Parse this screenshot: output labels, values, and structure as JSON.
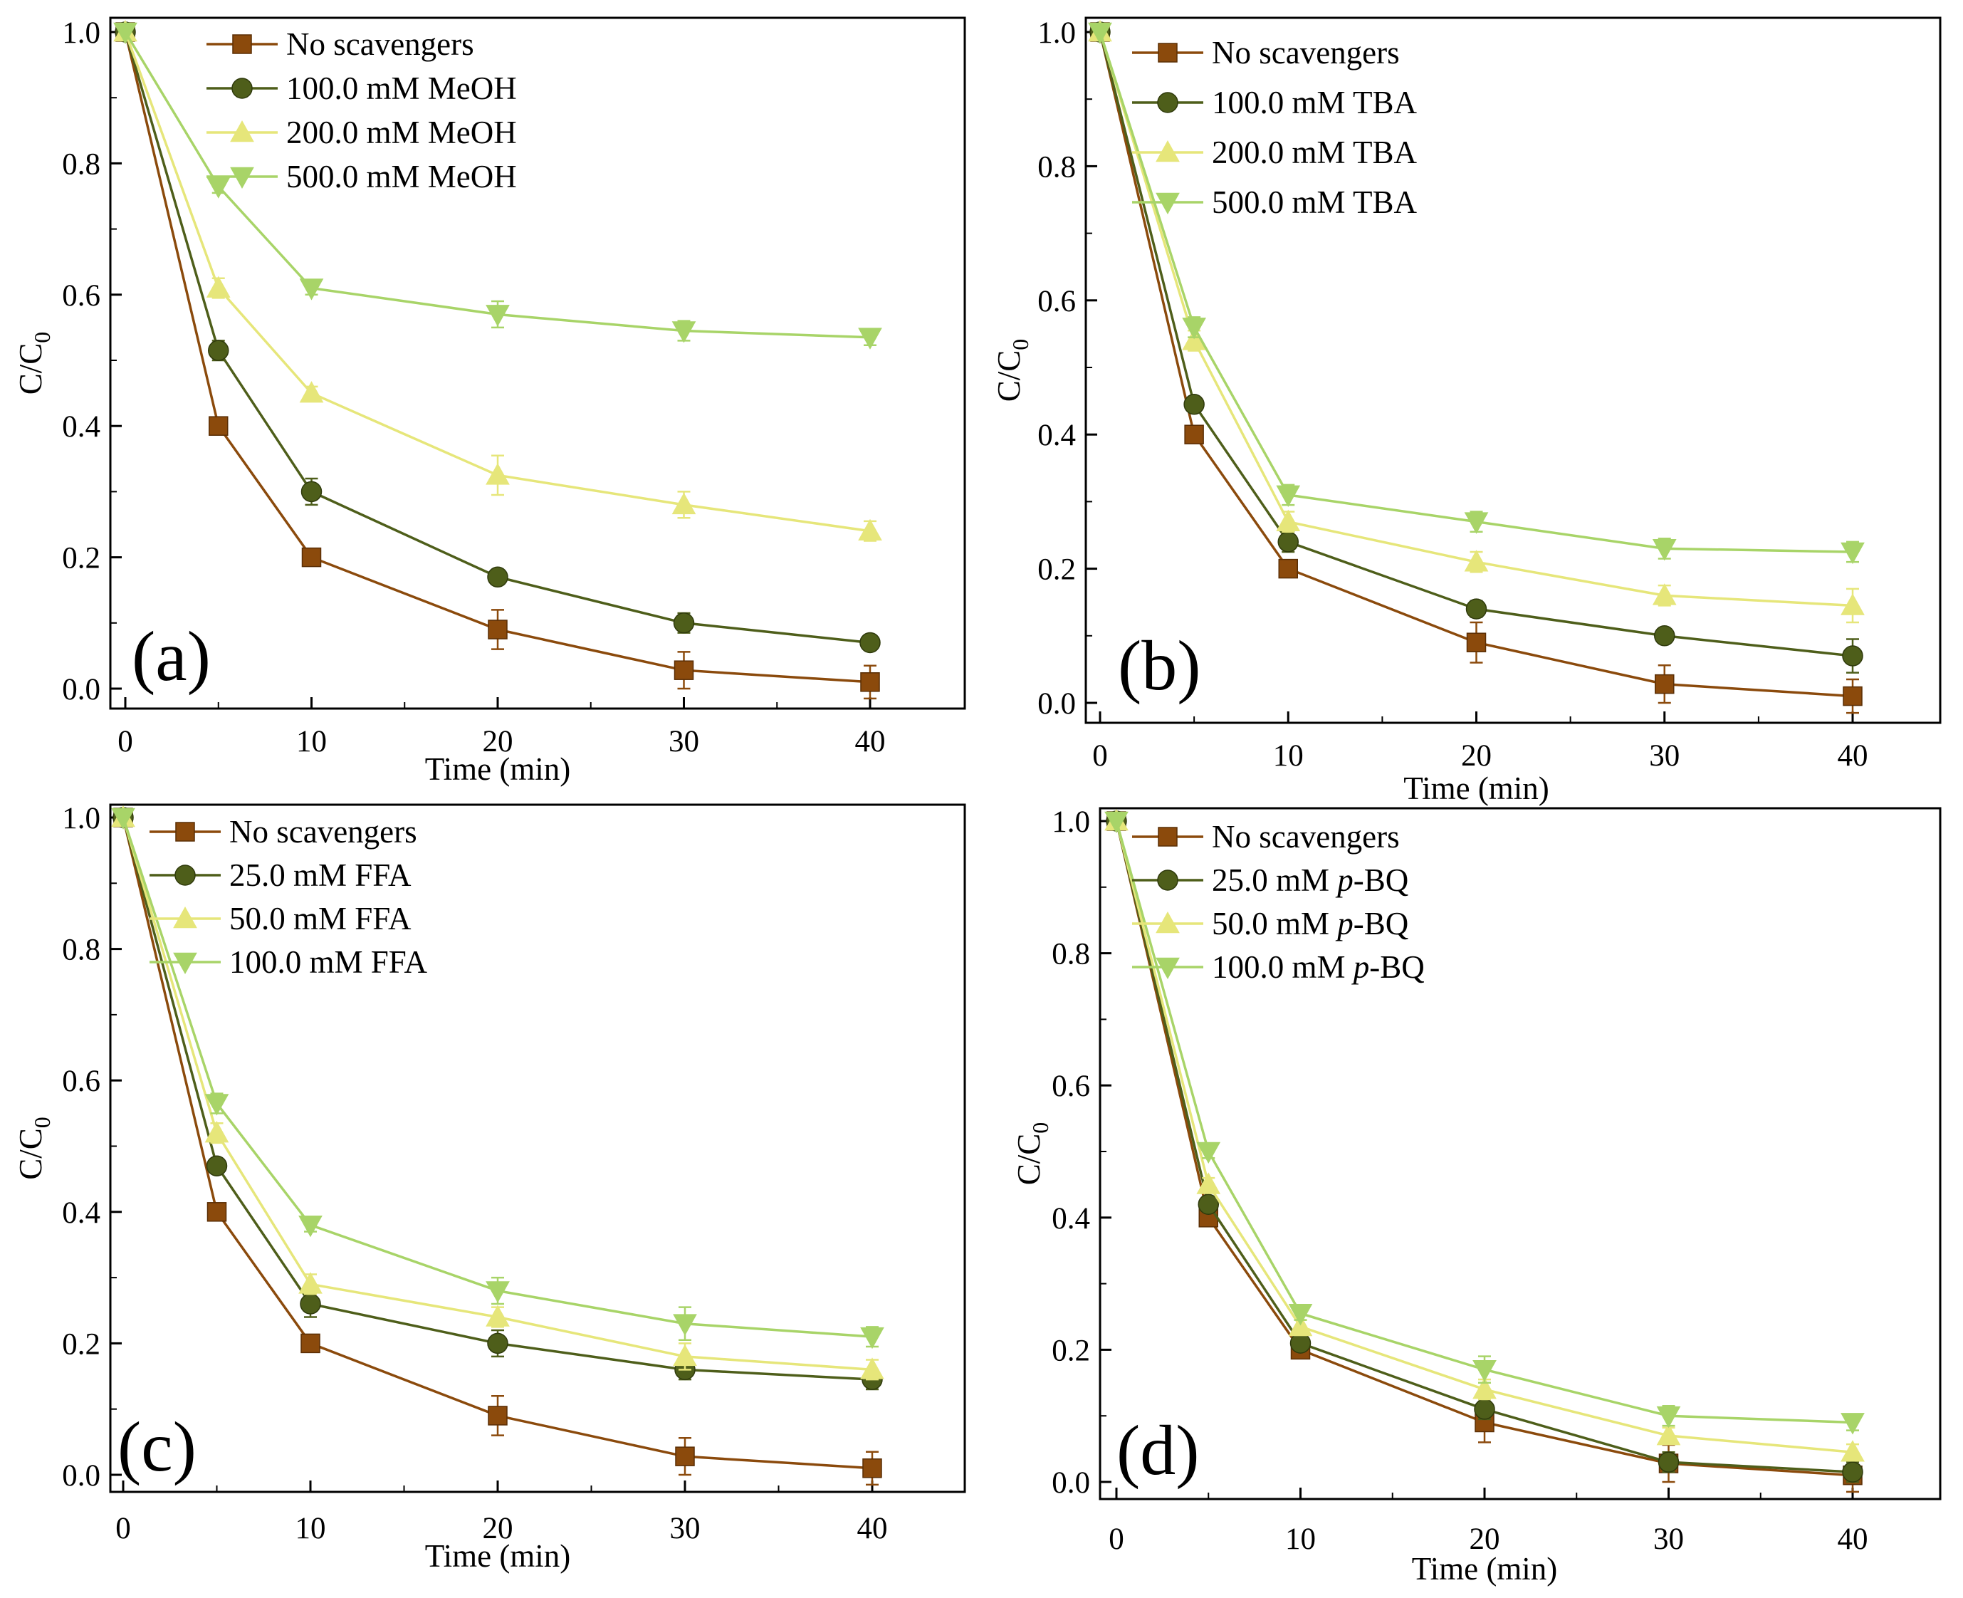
{
  "colors": {
    "none": "#8B4A0C",
    "c1": "#4E5E1A",
    "c2": "#E6E67A",
    "c3": "#A8D468",
    "axis": "#000000"
  },
  "chart_data": [
    {
      "type": "line",
      "panel_label": "(a)",
      "xlabel": "Time (min)",
      "ylabel": "C/C",
      "ylabel_sub": "0",
      "x": [
        0,
        5,
        10,
        20,
        30,
        40
      ],
      "xlim": [
        -1,
        45
      ],
      "ylim": [
        -0.02,
        1.02
      ],
      "xticks": [
        0,
        10,
        20,
        30,
        40
      ],
      "yticks": [
        "0.0",
        "0.2",
        "0.4",
        "0.6",
        "0.8",
        "1.0"
      ],
      "legend_position": "top-center",
      "series": [
        {
          "name": "No scavengers",
          "marker": "square",
          "color_key": "none",
          "values": [
            1.0,
            0.4,
            0.2,
            0.09,
            0.028,
            0.01
          ],
          "errors": [
            0,
            0.01,
            0.01,
            0.03,
            0.028,
            0.025
          ]
        },
        {
          "name": "100.0 mM MeOH",
          "marker": "circle",
          "color_key": "c1",
          "values": [
            1.0,
            0.515,
            0.3,
            0.17,
            0.1,
            0.07
          ],
          "errors": [
            0,
            0.015,
            0.02,
            0.01,
            0.015,
            0.01
          ]
        },
        {
          "name": "200.0 mM MeOH",
          "marker": "triangle-up",
          "color_key": "c2",
          "values": [
            1.0,
            0.61,
            0.45,
            0.325,
            0.28,
            0.24
          ],
          "errors": [
            0,
            0.015,
            0.01,
            0.03,
            0.02,
            0.015
          ]
        },
        {
          "name": "500.0 mM MeOH",
          "marker": "triangle-down",
          "color_key": "c3",
          "values": [
            1.0,
            0.765,
            0.61,
            0.57,
            0.545,
            0.535
          ],
          "errors": [
            0,
            0.01,
            0.01,
            0.02,
            0.015,
            0.012
          ]
        }
      ]
    },
    {
      "type": "line",
      "panel_label": "(b)",
      "xlabel": "Time (min)",
      "ylabel": "C/C",
      "ylabel_sub": "0",
      "x": [
        0,
        5,
        10,
        20,
        30,
        40
      ],
      "xlim": [
        -1,
        45
      ],
      "ylim": [
        -0.02,
        1.02
      ],
      "xticks": [
        0,
        10,
        20,
        30,
        40
      ],
      "yticks": [
        "0.0",
        "0.2",
        "0.4",
        "0.6",
        "0.8",
        "1.0"
      ],
      "legend_position": "top-center",
      "series": [
        {
          "name": "No scavengers",
          "marker": "square",
          "color_key": "none",
          "values": [
            1.0,
            0.4,
            0.2,
            0.09,
            0.028,
            0.01
          ],
          "errors": [
            0,
            0.01,
            0.01,
            0.03,
            0.028,
            0.025
          ]
        },
        {
          "name": "100.0 mM TBA",
          "marker": "circle",
          "color_key": "c1",
          "values": [
            1.0,
            0.445,
            0.24,
            0.14,
            0.1,
            0.07
          ],
          "errors": [
            0,
            0.01,
            0.015,
            0.012,
            0.01,
            0.025
          ]
        },
        {
          "name": "200.0 mM TBA",
          "marker": "triangle-up",
          "color_key": "c2",
          "values": [
            1.0,
            0.54,
            0.27,
            0.21,
            0.16,
            0.145
          ],
          "errors": [
            0,
            0.015,
            0.015,
            0.015,
            0.015,
            0.025
          ]
        },
        {
          "name": "500.0 mM TBA",
          "marker": "triangle-down",
          "color_key": "c3",
          "values": [
            1.0,
            0.56,
            0.31,
            0.27,
            0.23,
            0.225
          ],
          "errors": [
            0,
            0.015,
            0.015,
            0.015,
            0.015,
            0.015
          ]
        }
      ]
    },
    {
      "type": "line",
      "panel_label": "(c)",
      "xlabel": "Time (min)",
      "ylabel": "C/C",
      "ylabel_sub": "0",
      "x": [
        0,
        5,
        10,
        20,
        30,
        40
      ],
      "xlim": [
        -1,
        45
      ],
      "ylim": [
        -0.02,
        1.02
      ],
      "xticks": [
        0,
        10,
        20,
        30,
        40
      ],
      "yticks": [
        "0.0",
        "0.2",
        "0.4",
        "0.6",
        "0.8",
        "1.0"
      ],
      "legend_position": "top-center",
      "series": [
        {
          "name": "No scavengers",
          "marker": "square",
          "color_key": "none",
          "values": [
            1.0,
            0.4,
            0.2,
            0.09,
            0.028,
            0.01
          ],
          "errors": [
            0,
            0.01,
            0.01,
            0.03,
            0.028,
            0.025
          ]
        },
        {
          "name": "25.0 mM FFA",
          "marker": "circle",
          "color_key": "c1",
          "values": [
            1.0,
            0.47,
            0.26,
            0.2,
            0.16,
            0.145
          ],
          "errors": [
            0,
            0.01,
            0.02,
            0.02,
            0.015,
            0.015
          ]
        },
        {
          "name": "50.0 mM FFA",
          "marker": "triangle-up",
          "color_key": "c2",
          "values": [
            1.0,
            0.52,
            0.29,
            0.24,
            0.18,
            0.16
          ],
          "errors": [
            0,
            0.015,
            0.015,
            0.015,
            0.02,
            0.015
          ]
        },
        {
          "name": "100.0 mM FFA",
          "marker": "triangle-down",
          "color_key": "c3",
          "values": [
            1.0,
            0.565,
            0.38,
            0.28,
            0.23,
            0.21
          ],
          "errors": [
            0,
            0.015,
            0.01,
            0.02,
            0.025,
            0.015
          ]
        }
      ]
    },
    {
      "type": "line",
      "panel_label": "(d)",
      "xlabel": "Time (min)",
      "ylabel": "C/C",
      "ylabel_sub": "0",
      "x": [
        0,
        5,
        10,
        20,
        30,
        40
      ],
      "xlim": [
        -1,
        45
      ],
      "ylim": [
        -0.02,
        1.02
      ],
      "xticks": [
        0,
        10,
        20,
        30,
        40
      ],
      "yticks": [
        "0.0",
        "0.2",
        "0.4",
        "0.6",
        "0.8",
        "1.0"
      ],
      "legend_position": "top-center",
      "series": [
        {
          "name": "No scavengers",
          "marker": "square",
          "color_key": "none",
          "values": [
            1.0,
            0.4,
            0.2,
            0.09,
            0.028,
            0.01
          ],
          "errors": [
            0,
            0.01,
            0.01,
            0.03,
            0.028,
            0.025
          ]
        },
        {
          "name": "25.0 mM p-BQ",
          "name_prefix": "25.0 mM ",
          "name_italic": "p",
          "name_suffix": "-BQ",
          "marker": "circle",
          "color_key": "c1",
          "values": [
            1.0,
            0.42,
            0.21,
            0.11,
            0.03,
            0.015
          ],
          "errors": [
            0,
            0.01,
            0.01,
            0.015,
            0.015,
            0.015
          ]
        },
        {
          "name": "50.0 mM p-BQ",
          "name_prefix": "50.0 mM ",
          "name_italic": "p",
          "name_suffix": "-BQ",
          "marker": "triangle-up",
          "color_key": "c2",
          "values": [
            1.0,
            0.45,
            0.235,
            0.14,
            0.07,
            0.045
          ],
          "errors": [
            0,
            0.01,
            0.01,
            0.015,
            0.012,
            0.012
          ]
        },
        {
          "name": "100.0 mM p-BQ",
          "name_prefix": "100.0 mM ",
          "name_italic": "p",
          "name_suffix": "-BQ",
          "marker": "triangle-down",
          "color_key": "c3",
          "values": [
            1.0,
            0.5,
            0.255,
            0.17,
            0.1,
            0.09
          ],
          "errors": [
            0,
            0.01,
            0.01,
            0.02,
            0.015,
            0.012
          ]
        }
      ]
    }
  ]
}
